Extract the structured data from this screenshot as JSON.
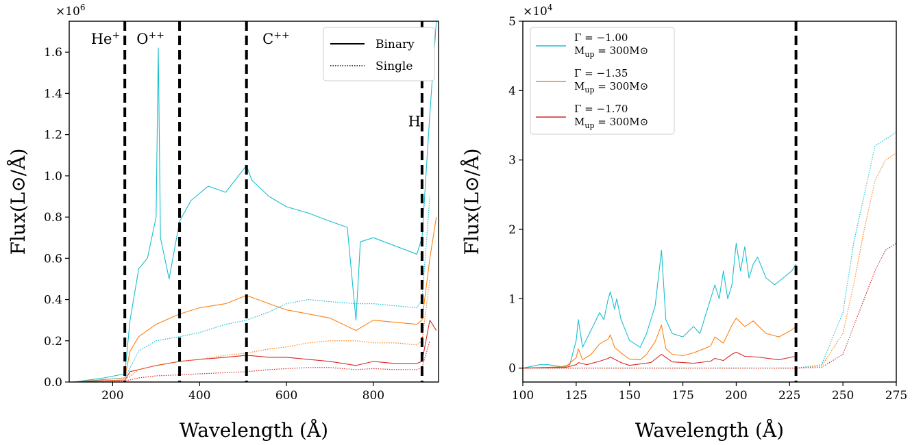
{
  "chart_data": [
    {
      "type": "line",
      "xlabel": "Wavelength (Å)",
      "ylabel": "Flux(L⊙/Å)",
      "xlim": [
        100,
        950
      ],
      "ylim": [
        0,
        1.75
      ],
      "y_multiplier": "×10^6",
      "x_ticks": [
        200,
        400,
        600,
        800
      ],
      "y_ticks": [
        0.0,
        0.2,
        0.4,
        0.6,
        0.8,
        1.0,
        1.2,
        1.4,
        1.6
      ],
      "grid": false,
      "legend": {
        "placement": "top-right",
        "entries": [
          {
            "label": "Binary",
            "style": "solid"
          },
          {
            "label": "Single",
            "style": "dotted"
          }
        ]
      },
      "vlines": [
        228,
        354,
        508,
        912
      ],
      "annotations": [
        {
          "text": "He+",
          "x": 150,
          "y": 1.64
        },
        {
          "text": "O++",
          "x": 255,
          "y": 1.64
        },
        {
          "text": "C++",
          "x": 545,
          "y": 1.64
        },
        {
          "text": "H",
          "x": 880,
          "y": 1.24
        }
      ],
      "series": [
        {
          "color": "#17becf",
          "style": "solid",
          "x": [
            110,
            180,
            228,
            240,
            260,
            280,
            300,
            305,
            310,
            330,
            354,
            380,
            420,
            460,
            508,
            520,
            560,
            600,
            650,
            700,
            740,
            760,
            770,
            800,
            850,
            900,
            912,
            930,
            945
          ],
          "y": [
            0.0,
            0.02,
            0.04,
            0.3,
            0.55,
            0.6,
            0.8,
            1.62,
            0.7,
            0.5,
            0.78,
            0.88,
            0.95,
            0.92,
            1.05,
            0.98,
            0.9,
            0.85,
            0.82,
            0.78,
            0.75,
            0.3,
            0.68,
            0.7,
            0.66,
            0.62,
            0.7,
            1.3,
            1.75
          ]
        },
        {
          "color": "#ff7f0e",
          "style": "solid",
          "x": [
            110,
            228,
            240,
            260,
            300,
            354,
            400,
            460,
            508,
            560,
            600,
            650,
            700,
            760,
            800,
            850,
            900,
            912,
            930,
            945
          ],
          "y": [
            0.0,
            0.02,
            0.15,
            0.22,
            0.28,
            0.33,
            0.36,
            0.38,
            0.42,
            0.38,
            0.35,
            0.33,
            0.31,
            0.25,
            0.3,
            0.29,
            0.28,
            0.3,
            0.6,
            0.8
          ]
        },
        {
          "color": "#d62728",
          "style": "solid",
          "x": [
            110,
            228,
            240,
            300,
            354,
            400,
            460,
            508,
            560,
            600,
            650,
            700,
            760,
            800,
            850,
            900,
            912,
            930,
            945
          ],
          "y": [
            0.0,
            0.01,
            0.05,
            0.08,
            0.1,
            0.11,
            0.12,
            0.13,
            0.12,
            0.12,
            0.11,
            0.1,
            0.08,
            0.1,
            0.09,
            0.09,
            0.1,
            0.3,
            0.25
          ]
        },
        {
          "color": "#17becf",
          "style": "dotted",
          "x": [
            110,
            228,
            260,
            300,
            354,
            400,
            460,
            508,
            560,
            600,
            650,
            700,
            760,
            800,
            850,
            900,
            912,
            930
          ],
          "y": [
            0.0,
            0.02,
            0.15,
            0.2,
            0.22,
            0.24,
            0.28,
            0.3,
            0.34,
            0.38,
            0.4,
            0.39,
            0.38,
            0.38,
            0.37,
            0.36,
            0.4,
            0.9
          ]
        },
        {
          "color": "#ff7f0e",
          "style": "dotted",
          "x": [
            110,
            228,
            260,
            300,
            354,
            400,
            460,
            508,
            560,
            600,
            650,
            700,
            760,
            800,
            850,
            900,
            912,
            930
          ],
          "y": [
            0.0,
            0.01,
            0.06,
            0.08,
            0.1,
            0.11,
            0.13,
            0.14,
            0.16,
            0.17,
            0.19,
            0.2,
            0.2,
            0.19,
            0.19,
            0.18,
            0.2,
            0.5
          ]
        },
        {
          "color": "#d62728",
          "style": "dotted",
          "x": [
            110,
            228,
            260,
            300,
            354,
            400,
            460,
            508,
            560,
            600,
            650,
            700,
            760,
            800,
            850,
            900,
            912,
            930
          ],
          "y": [
            0.0,
            0.005,
            0.02,
            0.03,
            0.035,
            0.04,
            0.045,
            0.05,
            0.06,
            0.065,
            0.07,
            0.07,
            0.06,
            0.065,
            0.06,
            0.06,
            0.07,
            0.2
          ]
        }
      ]
    },
    {
      "type": "line",
      "xlabel": "Wavelength (Å)",
      "ylabel": "Flux(L⊙/Å)",
      "xlim": [
        100,
        275
      ],
      "ylim": [
        -0.2,
        5
      ],
      "y_multiplier": "×10^4",
      "x_ticks": [
        100,
        125,
        150,
        175,
        200,
        225,
        250,
        275
      ],
      "y_ticks": [
        0,
        1,
        2,
        3,
        4,
        5
      ],
      "grid": false,
      "legend": {
        "placement": "top-left",
        "entries": [
          {
            "line1": "Γ = −1.00",
            "line2": "Mup = 300M⊙",
            "color": "#17becf"
          },
          {
            "line1": "Γ = −1.35",
            "line2": "Mup = 300M⊙",
            "color": "#ff7f0e"
          },
          {
            "line1": "Γ = −1.70",
            "line2": "Mup = 300M⊙",
            "color": "#d62728"
          }
        ]
      },
      "vlines": [
        228
      ],
      "series": [
        {
          "color": "#17becf",
          "style": "solid",
          "x": [
            100,
            108,
            112,
            118,
            122,
            125,
            126,
            128,
            132,
            136,
            138,
            140,
            141,
            143,
            144,
            146,
            150,
            155,
            158,
            162,
            165,
            167,
            170,
            175,
            180,
            183,
            185,
            188,
            190,
            192,
            194,
            196,
            198,
            200,
            202,
            204,
            206,
            208,
            210,
            214,
            218,
            222,
            226,
            228
          ],
          "y": [
            0.0,
            0.05,
            0.05,
            0.02,
            0.05,
            0.4,
            0.7,
            0.3,
            0.55,
            0.8,
            0.7,
            1.0,
            1.1,
            0.85,
            1.0,
            0.7,
            0.4,
            0.3,
            0.5,
            0.9,
            1.7,
            0.7,
            0.5,
            0.45,
            0.6,
            0.5,
            0.7,
            1.0,
            1.2,
            1.0,
            1.4,
            1.0,
            1.2,
            1.8,
            1.4,
            1.75,
            1.3,
            1.5,
            1.6,
            1.3,
            1.2,
            1.3,
            1.4,
            1.5
          ]
        },
        {
          "color": "#ff7f0e",
          "style": "solid",
          "x": [
            100,
            120,
            125,
            126,
            128,
            132,
            136,
            140,
            141,
            143,
            146,
            150,
            155,
            158,
            162,
            165,
            167,
            170,
            175,
            180,
            185,
            188,
            190,
            194,
            198,
            200,
            204,
            208,
            214,
            220,
            226,
            228
          ],
          "y": [
            0.0,
            0.02,
            0.15,
            0.28,
            0.12,
            0.2,
            0.35,
            0.42,
            0.48,
            0.3,
            0.22,
            0.13,
            0.12,
            0.2,
            0.38,
            0.62,
            0.28,
            0.2,
            0.18,
            0.22,
            0.28,
            0.32,
            0.45,
            0.36,
            0.62,
            0.72,
            0.6,
            0.68,
            0.5,
            0.45,
            0.55,
            0.6
          ]
        },
        {
          "color": "#d62728",
          "style": "solid",
          "x": [
            100,
            120,
            125,
            126,
            130,
            136,
            140,
            141,
            146,
            150,
            160,
            165,
            170,
            180,
            188,
            190,
            194,
            198,
            200,
            204,
            210,
            220,
            226,
            228
          ],
          "y": [
            0.0,
            0.01,
            0.05,
            0.08,
            0.05,
            0.1,
            0.14,
            0.16,
            0.08,
            0.04,
            0.08,
            0.2,
            0.09,
            0.07,
            0.1,
            0.14,
            0.11,
            0.2,
            0.23,
            0.17,
            0.16,
            0.12,
            0.16,
            0.17
          ]
        },
        {
          "color": "#17becf",
          "style": "dotted",
          "x": [
            100,
            150,
            200,
            228,
            240,
            250,
            255,
            260,
            265,
            270,
            275
          ],
          "y": [
            0.0,
            0.0,
            0.0,
            0.0,
            0.05,
            0.8,
            1.8,
            2.5,
            3.2,
            3.3,
            3.4
          ]
        },
        {
          "color": "#ff7f0e",
          "style": "dotted",
          "x": [
            100,
            150,
            200,
            228,
            240,
            250,
            255,
            260,
            265,
            270,
            275
          ],
          "y": [
            0.0,
            0.0,
            0.0,
            0.0,
            0.03,
            0.5,
            1.2,
            2.0,
            2.7,
            3.0,
            3.1
          ]
        },
        {
          "color": "#d62728",
          "style": "dotted",
          "x": [
            100,
            150,
            200,
            228,
            240,
            250,
            255,
            260,
            265,
            270,
            275
          ],
          "y": [
            0.0,
            0.0,
            0.0,
            0.0,
            0.01,
            0.2,
            0.6,
            1.0,
            1.4,
            1.7,
            1.8
          ]
        }
      ]
    }
  ]
}
